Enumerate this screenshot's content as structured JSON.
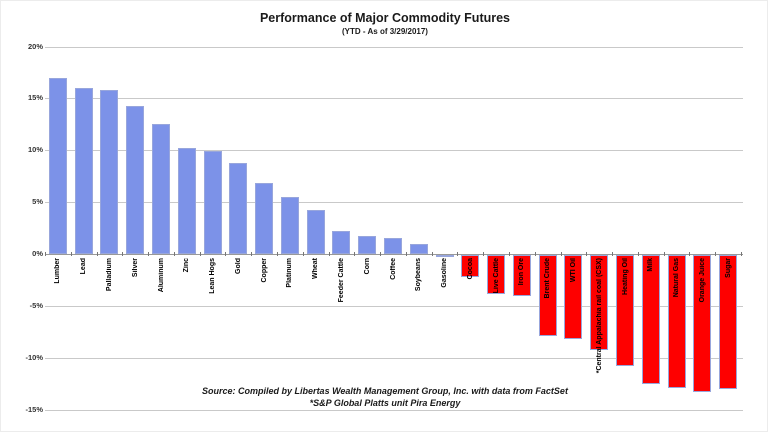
{
  "chart_data": {
    "type": "bar",
    "title": "Performance of Major Commodity Futures",
    "subtitle": "(YTD - As of 3/29/2017)",
    "source_line1": "Source:  Compiled by Libertas Wealth Management Group, Inc. with data from FactSet",
    "source_line2": "*S&P Global Platts unit Pira Energy",
    "categories": [
      "Lumber",
      "Lead",
      "Palladium",
      "Silver",
      "Aluminum",
      "Zinc",
      "Lean Hogs",
      "Gold",
      "Copper",
      "Platinum",
      "Wheat",
      "Feeder Cattle",
      "Corn",
      "Coffee",
      "Soybeans",
      "Gasoline",
      "Cocoa",
      "Live Cattle",
      "Iron Ore",
      "Brent Crude",
      "WTI Oil",
      "*Central Appalachia rail coal (CSX)",
      "Heating Oil",
      "Milk",
      "Natural Gas",
      "Orange Juice",
      "Sugar"
    ],
    "values": [
      17.0,
      16.0,
      15.8,
      14.3,
      12.5,
      10.2,
      9.9,
      8.8,
      6.8,
      5.5,
      4.2,
      2.2,
      1.7,
      1.5,
      1.0,
      -0.2,
      -2.1,
      -3.8,
      -4.0,
      -7.8,
      -8.1,
      -9.2,
      -10.7,
      -12.4,
      -12.8,
      -13.2,
      -12.9
    ],
    "xlabel": "",
    "ylabel": "",
    "ylim": [
      -15,
      20
    ],
    "ytick_interval": 5,
    "yticks": [
      20,
      15,
      10,
      5,
      0,
      -5,
      -10,
      -15
    ],
    "ytick_labels": [
      "20%",
      "15%",
      "10%",
      "5%",
      "0%",
      "-5%",
      "-10%",
      "-15%"
    ],
    "grid": true,
    "legend": "none",
    "positive_color": "#7c92e8",
    "negative_color": "#fe0000",
    "bar_border_color": "#98a6dc"
  }
}
